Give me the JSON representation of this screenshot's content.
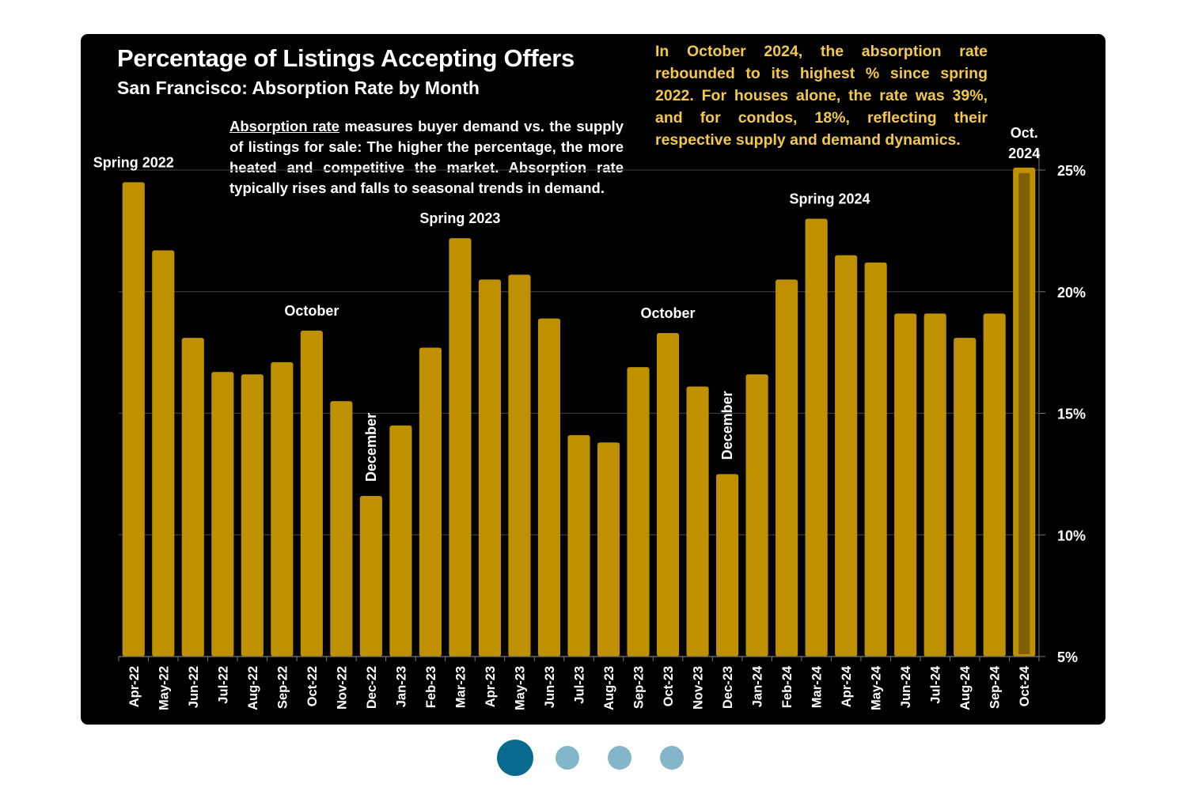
{
  "chart_data": {
    "type": "bar",
    "title": "Percentage of Listings Accepting Offers",
    "subtitle": "San Francisco:  Absorption Rate by Month",
    "xlabel": "",
    "ylabel": "",
    "ylim": [
      5,
      25
    ],
    "yticks": [
      5,
      10,
      15,
      20,
      25
    ],
    "ytick_labels": [
      "5%",
      "10%",
      "15%",
      "20%",
      "25%"
    ],
    "y_axis_position": "right",
    "grid": true,
    "categories": [
      "Apr-22",
      "May-22",
      "Jun-22",
      "Jul-22",
      "Aug-22",
      "Sep-22",
      "Oct-22",
      "Nov-22",
      "Dec-22",
      "Jan-23",
      "Feb-23",
      "Mar-23",
      "Apr-23",
      "May-23",
      "Jun-23",
      "Jul-23",
      "Aug-23",
      "Sep-23",
      "Oct-23",
      "Nov-23",
      "Dec-23",
      "Jan-24",
      "Feb-24",
      "Mar-24",
      "Apr-24",
      "May-24",
      "Jun-24",
      "Jul-24",
      "Aug-24",
      "Sep-24",
      "Oct-24"
    ],
    "values": [
      24.5,
      21.7,
      18.1,
      16.7,
      16.6,
      17.1,
      18.4,
      15.5,
      11.6,
      14.5,
      17.7,
      22.2,
      20.5,
      20.7,
      18.9,
      14.1,
      13.8,
      16.9,
      18.3,
      16.1,
      12.5,
      16.6,
      20.5,
      23.0,
      21.5,
      21.2,
      19.1,
      19.1,
      18.1,
      19.1,
      25.1
    ],
    "highlight_index": 30,
    "bar_color": "#bf9000",
    "highlight_inner_color": "#7f6000",
    "annotations": [
      {
        "text": "Spring 2022",
        "category": "Apr-22",
        "orientation": "horizontal"
      },
      {
        "text": "October",
        "category": "Oct-22",
        "orientation": "horizontal"
      },
      {
        "text": "December",
        "category": "Dec-22",
        "orientation": "vertical"
      },
      {
        "text": "Spring 2023",
        "category": "Mar-23",
        "orientation": "horizontal"
      },
      {
        "text": "October",
        "category": "Oct-23",
        "orientation": "horizontal"
      },
      {
        "text": "December",
        "category": "Dec-23",
        "orientation": "vertical"
      },
      {
        "text": "Spring 2024",
        "category": "Apr-24",
        "orientation": "horizontal"
      },
      {
        "text": "Oct. 2024",
        "category": "Oct-24",
        "orientation": "horizontal"
      }
    ]
  },
  "description": {
    "term": "Absorption rate",
    "text": " measures buyer demand vs. the supply of listings for sale: The higher the percentage, the more heated and competitive the market. Absorption rate typically rises and falls to seasonal trends in demand."
  },
  "callout": "In October 2024, the absorption rate rebounded to its highest % since spring 2022. For houses alone, the rate was 39%, and for condos, 18%, reflecting their respective supply and demand dynamics.",
  "pagination": {
    "total": 4,
    "active_index": 0,
    "active_color": "#076a8e",
    "inactive_color": "#84b6c9"
  }
}
